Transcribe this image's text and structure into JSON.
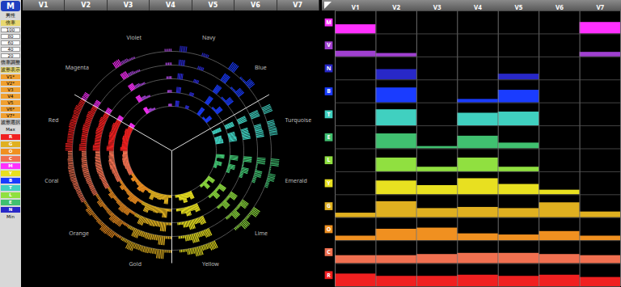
{
  "chart_data": {
    "type": "radial",
    "sidebar": {
      "logo": "M",
      "gender": "男性",
      "scale_title": "倍率",
      "scale_options": [
        100,
        80,
        60,
        40,
        20
      ],
      "scale_button": "倍率調整",
      "wave_title": "波形表示",
      "wave_options": [
        "V1*",
        "V2*",
        "V3",
        "V4",
        "V5",
        "V6*",
        "V7*"
      ],
      "wave_button": "波形選択",
      "level_max": "Max",
      "level_min": "Min",
      "level_codes": [
        "R",
        "G",
        "O",
        "C",
        "M",
        "Y",
        "B",
        "T",
        "L",
        "E",
        "N"
      ]
    },
    "categories": [
      "V1",
      "V2",
      "V3",
      "V4",
      "V5",
      "V6",
      "V7"
    ],
    "ylim": [
      0,
      100
    ],
    "tick_labels": false,
    "series": [
      {
        "name": "M",
        "color": "#ff30ff",
        "values": [
          40,
          0,
          0,
          0,
          0,
          0,
          50
        ]
      },
      {
        "name": "V",
        "color": "#a040d0",
        "values": [
          25,
          15,
          0,
          0,
          0,
          0,
          20
        ]
      },
      {
        "name": "N",
        "color": "#2828c8",
        "values": [
          0,
          45,
          0,
          0,
          25,
          0,
          0
        ]
      },
      {
        "name": "B",
        "color": "#1a3cff",
        "values": [
          0,
          65,
          0,
          15,
          55,
          0,
          0
        ]
      },
      {
        "name": "T",
        "color": "#40d0c0",
        "values": [
          0,
          70,
          0,
          55,
          60,
          0,
          0
        ]
      },
      {
        "name": "E",
        "color": "#40c070",
        "values": [
          0,
          65,
          10,
          55,
          25,
          0,
          0
        ]
      },
      {
        "name": "L",
        "color": "#90e040",
        "values": [
          0,
          60,
          20,
          60,
          20,
          0,
          0
        ]
      },
      {
        "name": "Y",
        "color": "#e8e020",
        "values": [
          0,
          60,
          40,
          70,
          45,
          20,
          0
        ]
      },
      {
        "name": "G",
        "color": "#e0b020",
        "values": [
          20,
          70,
          40,
          45,
          40,
          65,
          25
        ]
      },
      {
        "name": "O",
        "color": "#f09020",
        "values": [
          20,
          50,
          55,
          30,
          25,
          40,
          20
        ]
      },
      {
        "name": "C",
        "color": "#f07050",
        "values": [
          35,
          35,
          40,
          45,
          45,
          40,
          35
        ]
      },
      {
        "name": "R",
        "color": "#f02020",
        "values": [
          55,
          45,
          45,
          50,
          45,
          50,
          40
        ]
      }
    ],
    "radial_sectors": [
      {
        "label": "Navy",
        "code": "N"
      },
      {
        "label": "Blue",
        "code": "B"
      },
      {
        "label": "Turquoise",
        "code": "T"
      },
      {
        "label": "Emerald",
        "code": "E"
      },
      {
        "label": "Lime",
        "code": "L"
      },
      {
        "label": "Yellow",
        "code": "Y"
      },
      {
        "label": "Gold",
        "code": "G"
      },
      {
        "label": "Orange",
        "code": "O"
      },
      {
        "label": "Coral",
        "code": "C"
      },
      {
        "label": "Red",
        "code": "R"
      },
      {
        "label": "Magenta",
        "code": "M"
      },
      {
        "label": "Violet",
        "code": "V"
      }
    ]
  }
}
